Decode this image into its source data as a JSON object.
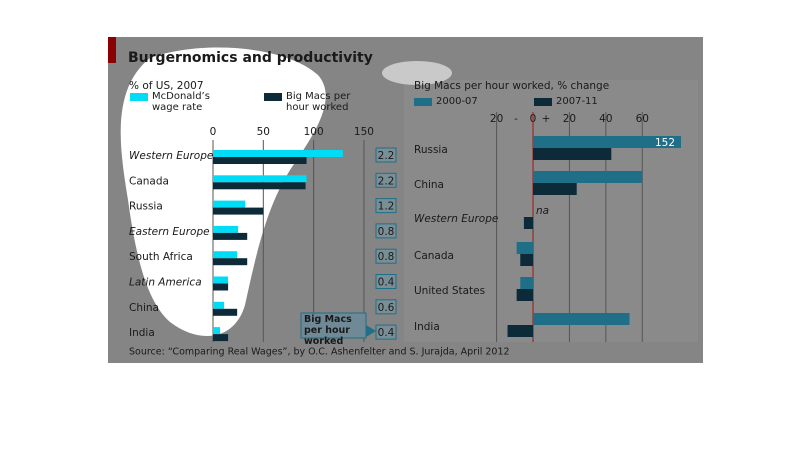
{
  "title": "Burgernomics and productivity",
  "source": "Source: “Comparing Real Wages”, by O.C. Ashenfelter and S. Jurajda, April 2012",
  "chart_data": [
    {
      "type": "bar",
      "orientation": "horizontal",
      "subtitle": "% of US, 2007",
      "categories": [
        "Western Europe",
        "Canada",
        "Russia",
        "Eastern Europe",
        "South Africa",
        "Latin America",
        "China",
        "India"
      ],
      "italic": [
        true,
        false,
        false,
        true,
        false,
        true,
        false,
        false
      ],
      "series": [
        {
          "name": "McDonald’s wage rate",
          "color": "#00dcf5",
          "values": [
            129,
            93,
            32,
            25,
            24,
            15,
            11,
            7
          ]
        },
        {
          "name": "Big Macs per hour worked",
          "color": "#0d2a38",
          "values": [
            93,
            92,
            50,
            34,
            34,
            15,
            24,
            15
          ]
        }
      ],
      "xlim": [
        0,
        160
      ],
      "xticks": [
        0,
        50,
        100,
        150
      ],
      "grid": true,
      "ratio": {
        "label": "Big Macs per hour worked",
        "values": [
          2.2,
          2.2,
          1.2,
          0.8,
          0.8,
          0.4,
          0.6,
          0.4
        ]
      }
    },
    {
      "type": "bar",
      "orientation": "horizontal",
      "subtitle": "Big Macs per hour worked, % change",
      "categories": [
        "Russia",
        "China",
        "Western Europe",
        "Canada",
        "United States",
        "India"
      ],
      "italic": [
        false,
        false,
        true,
        false,
        false,
        false
      ],
      "series": [
        {
          "name": "2000-07",
          "color": "#1f6f88",
          "values": [
            152,
            60,
            null,
            -9,
            -7,
            53
          ],
          "value_labels": [
            "152",
            null,
            "na",
            null,
            null,
            null
          ]
        },
        {
          "name": "2007-11",
          "color": "#0d2a38",
          "values": [
            43,
            24,
            -5,
            -7,
            -9,
            -14
          ]
        }
      ],
      "xlim": [
        -25,
        67
      ],
      "xticks": [
        {
          "value": -20,
          "label": "20"
        },
        0,
        20,
        40,
        60
      ],
      "axis_signs": [
        "-",
        "+"
      ],
      "grid": true
    }
  ]
}
